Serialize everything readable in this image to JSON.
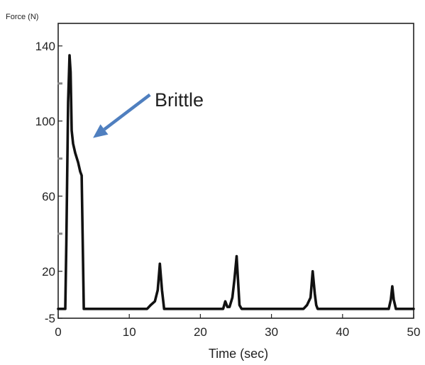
{
  "chart_data": {
    "type": "line",
    "title": "",
    "xlabel": "Time (sec)",
    "ylabel": "Force (N)",
    "xlim": [
      0,
      50
    ],
    "ylim": [
      -5,
      152
    ],
    "x_ticks": [
      0,
      10,
      20,
      30,
      40,
      50
    ],
    "x_tick_labels": [
      "0",
      "10",
      "20",
      "30",
      "40",
      "50"
    ],
    "y_ticks": [
      -5,
      20,
      60,
      100,
      140
    ],
    "y_tick_labels": [
      "-5",
      "20",
      "60",
      "100",
      "140"
    ],
    "y_minor_ticks": [
      0,
      40,
      80,
      120
    ],
    "grid": false,
    "legend": "none",
    "annotation": {
      "text": "Brittle",
      "arrow_from": [
        12.9,
        114
      ],
      "arrow_to": [
        4.9,
        91
      ]
    },
    "series": [
      {
        "color": "#111111",
        "x": [
          0.0,
          1.0,
          1.15,
          1.4,
          1.6,
          1.75,
          1.9,
          2.1,
          2.4,
          2.8,
          3.1,
          3.3,
          3.6,
          3.9,
          4.0,
          12.5,
          13.0,
          13.6,
          14.0,
          14.3,
          14.6,
          14.9,
          15.1,
          23.2,
          23.5,
          23.8,
          24.1,
          24.5,
          24.8,
          25.1,
          25.3,
          25.5,
          25.8,
          34.5,
          35.0,
          35.5,
          35.8,
          36.1,
          36.3,
          36.5,
          36.8,
          46.5,
          46.8,
          47.0,
          47.2,
          47.5,
          50.0
        ],
        "y": [
          0.0,
          0.0,
          35.0,
          110.0,
          135.0,
          126.0,
          95.0,
          88.0,
          83.0,
          78.0,
          73.0,
          71.0,
          0.0,
          0.0,
          0.0,
          0.0,
          2.0,
          4.0,
          10.0,
          24.0,
          10.0,
          0.0,
          0.0,
          0.0,
          4.0,
          1.0,
          1.0,
          6.0,
          16.0,
          28.0,
          15.0,
          2.0,
          0.0,
          0.0,
          2.0,
          6.0,
          20.0,
          8.0,
          2.0,
          0.0,
          0.0,
          0.0,
          5.0,
          12.0,
          5.0,
          0.0,
          0.0
        ]
      }
    ]
  }
}
